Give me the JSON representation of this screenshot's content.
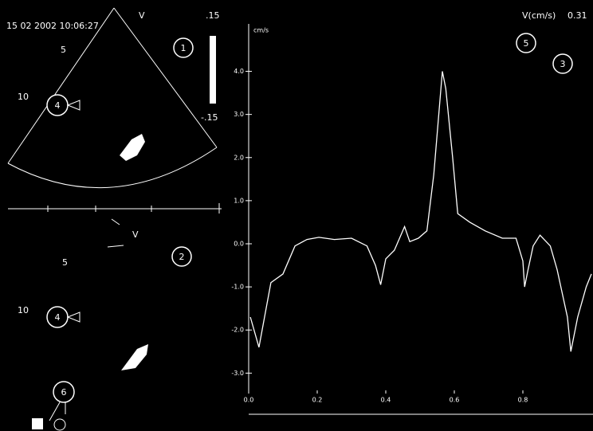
{
  "top_panel": {
    "timestamp": "15 02 2002 10:06:27",
    "mode": "V",
    "depth_marks": [
      "5",
      "10"
    ],
    "scale_max": ".15",
    "scale_min": "-.15",
    "callouts": [
      "1",
      "4"
    ]
  },
  "bottom_panel": {
    "mode": "V",
    "depth_marks": [
      "5",
      "10"
    ],
    "callouts": [
      "2",
      "4",
      "6"
    ]
  },
  "chart_data": {
    "type": "line",
    "y_label": "cm/s",
    "annotation_label": "V(cm/s)",
    "annotation_value": "0.31",
    "callouts": [
      "5",
      "3"
    ],
    "x": [
      0.005,
      0.03,
      0.065,
      0.1,
      0.135,
      0.17,
      0.205,
      0.25,
      0.3,
      0.345,
      0.37,
      0.385,
      0.4,
      0.425,
      0.455,
      0.47,
      0.495,
      0.52,
      0.54,
      0.565,
      0.575,
      0.595,
      0.61,
      0.645,
      0.69,
      0.74,
      0.78,
      0.8,
      0.805,
      0.815,
      0.83,
      0.85,
      0.88,
      0.9,
      0.93,
      0.94,
      0.96,
      0.985,
      1.0
    ],
    "series": [
      {
        "color": "#ffffff",
        "values": [
          -1.7,
          -2.4,
          -0.9,
          -0.7,
          -0.05,
          0.1,
          0.15,
          0.1,
          0.13,
          -0.05,
          -0.5,
          -0.95,
          -0.35,
          -0.15,
          0.4,
          0.05,
          0.13,
          0.3,
          1.6,
          4.0,
          3.6,
          2.0,
          0.7,
          0.5,
          0.3,
          0.13,
          0.13,
          -0.4,
          -1.0,
          -0.6,
          -0.05,
          0.2,
          -0.05,
          -0.6,
          -1.7,
          -2.5,
          -1.7,
          -1.0,
          -0.7
        ]
      }
    ],
    "xlim": [
      0,
      1.0
    ],
    "ylim": [
      -3.4,
      5.1
    ],
    "xticks": [
      {
        "value": 0,
        "label": "0.0"
      },
      {
        "value": 0.2,
        "label": "0.2"
      },
      {
        "value": 0.4,
        "label": "0.4"
      },
      {
        "value": 0.6,
        "label": "0.6"
      },
      {
        "value": 0.8,
        "label": "0.8"
      }
    ],
    "yticks": [
      {
        "value": -3,
        "label": "-3.0"
      },
      {
        "value": -2,
        "label": "-2.0"
      },
      {
        "value": -1,
        "label": "-1.0"
      },
      {
        "value": 0,
        "label": "0.0"
      },
      {
        "value": 1,
        "label": "1.0"
      },
      {
        "value": 2,
        "label": "2.0"
      },
      {
        "value": 3,
        "label": "3.0"
      },
      {
        "value": 4,
        "label": "4.0"
      }
    ],
    "grid": false
  }
}
